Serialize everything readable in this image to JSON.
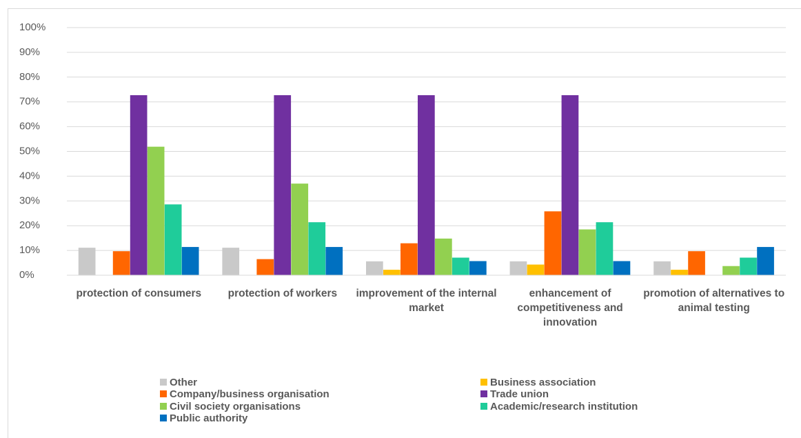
{
  "chart_data": {
    "type": "bar",
    "categories": [
      "protection of consumers",
      "protection of workers",
      "improvement of the internal market",
      "enhancement of competitiveness and innovation",
      "promotion of alternatives to animal testing"
    ],
    "series": [
      {
        "name": "Other",
        "color": "#c9c9c9",
        "values": [
          11.1,
          11.1,
          5.6,
          5.6,
          5.6
        ]
      },
      {
        "name": "Business association",
        "color": "#ffc000",
        "values": [
          0,
          0,
          2.2,
          4.3,
          2.2
        ]
      },
      {
        "name": "Company/business organisation",
        "color": "#ff6600",
        "values": [
          9.7,
          6.5,
          12.9,
          25.8,
          9.7
        ]
      },
      {
        "name": "Trade union",
        "color": "#7030a0",
        "values": [
          72.7,
          72.7,
          72.7,
          72.7,
          0
        ]
      },
      {
        "name": "Civil society organisations",
        "color": "#92d050",
        "values": [
          51.9,
          37,
          14.8,
          18.5,
          3.7
        ]
      },
      {
        "name": "Academic/research institution",
        "color": "#1fcc9a",
        "values": [
          28.6,
          21.4,
          7.1,
          21.4,
          7.1
        ]
      },
      {
        "name": "Public authority",
        "color": "#0070c0",
        "values": [
          11.4,
          11.4,
          5.7,
          5.7,
          11.4
        ]
      }
    ],
    "ylim": [
      0,
      100
    ],
    "yticks": [
      {
        "value": 0,
        "label": "0%"
      },
      {
        "value": 10,
        "label": "10%"
      },
      {
        "value": 20,
        "label": "20%"
      },
      {
        "value": 30,
        "label": "30%"
      },
      {
        "value": 40,
        "label": "40%"
      },
      {
        "value": 50,
        "label": "50%"
      },
      {
        "value": 60,
        "label": "60%"
      },
      {
        "value": 70,
        "label": "70%"
      },
      {
        "value": 80,
        "label": "80%"
      },
      {
        "value": 90,
        "label": "90%"
      },
      {
        "value": 100,
        "label": "100%"
      }
    ],
    "grid": true,
    "legend": "bottom"
  }
}
